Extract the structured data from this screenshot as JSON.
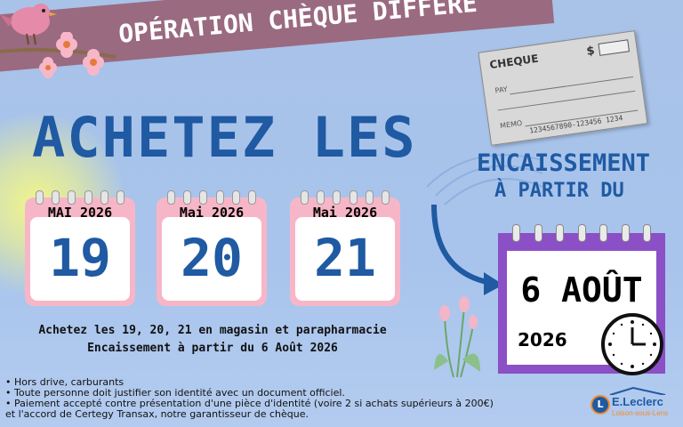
{
  "banner": {
    "title": "OPÉRATION CHÈQUE DIFFÉRÉ"
  },
  "headline": "ACHETEZ LES",
  "calendars": [
    {
      "month": "MAI 2026",
      "day": "19"
    },
    {
      "month": "Mai 2026",
      "day": "20"
    },
    {
      "month": "Mai 2026",
      "day": "21"
    }
  ],
  "info": {
    "line1": "Achetez les 19, 20, 21 en magasin et parapharmacie",
    "line2": "Encaissement à partir du 6 Août 2026"
  },
  "encaissement": {
    "line1": "ENCAISSEMENT",
    "line2": "À PARTIR DU"
  },
  "big_calendar": {
    "date": "6 AOÛT",
    "year": "2026"
  },
  "cheque": {
    "title": "CHEQUE",
    "dollar": "$",
    "pay": "PAY",
    "memo": "MEMO",
    "number": "1234567890-123456  1234"
  },
  "bullets": [
    "•  Hors drive, carburants",
    "•  Toute personne doit justifier son identité avec un document officiel.",
    "•  Paiement accepté contre présentation d'une pièce d'identité (voire 2 si achats supérieurs à 200€)",
    "et l'accord de Certegy Transax, notre garantisseur de chèque."
  ],
  "logo": {
    "letter": "L",
    "name": "E.Leclerc",
    "sub": "Loison-sous-Lens"
  },
  "colors": {
    "accent_blue": "#1f5aa3",
    "banner": "#9a6a80",
    "calendar_pink": "#f7b6c8",
    "calendar_purple": "#8b4fc6",
    "background": "#a9c2e8"
  },
  "icons": [
    "bird-icon",
    "flower-icon",
    "cheque-icon",
    "arrow-icon",
    "tulip-icon",
    "clock-icon"
  ]
}
